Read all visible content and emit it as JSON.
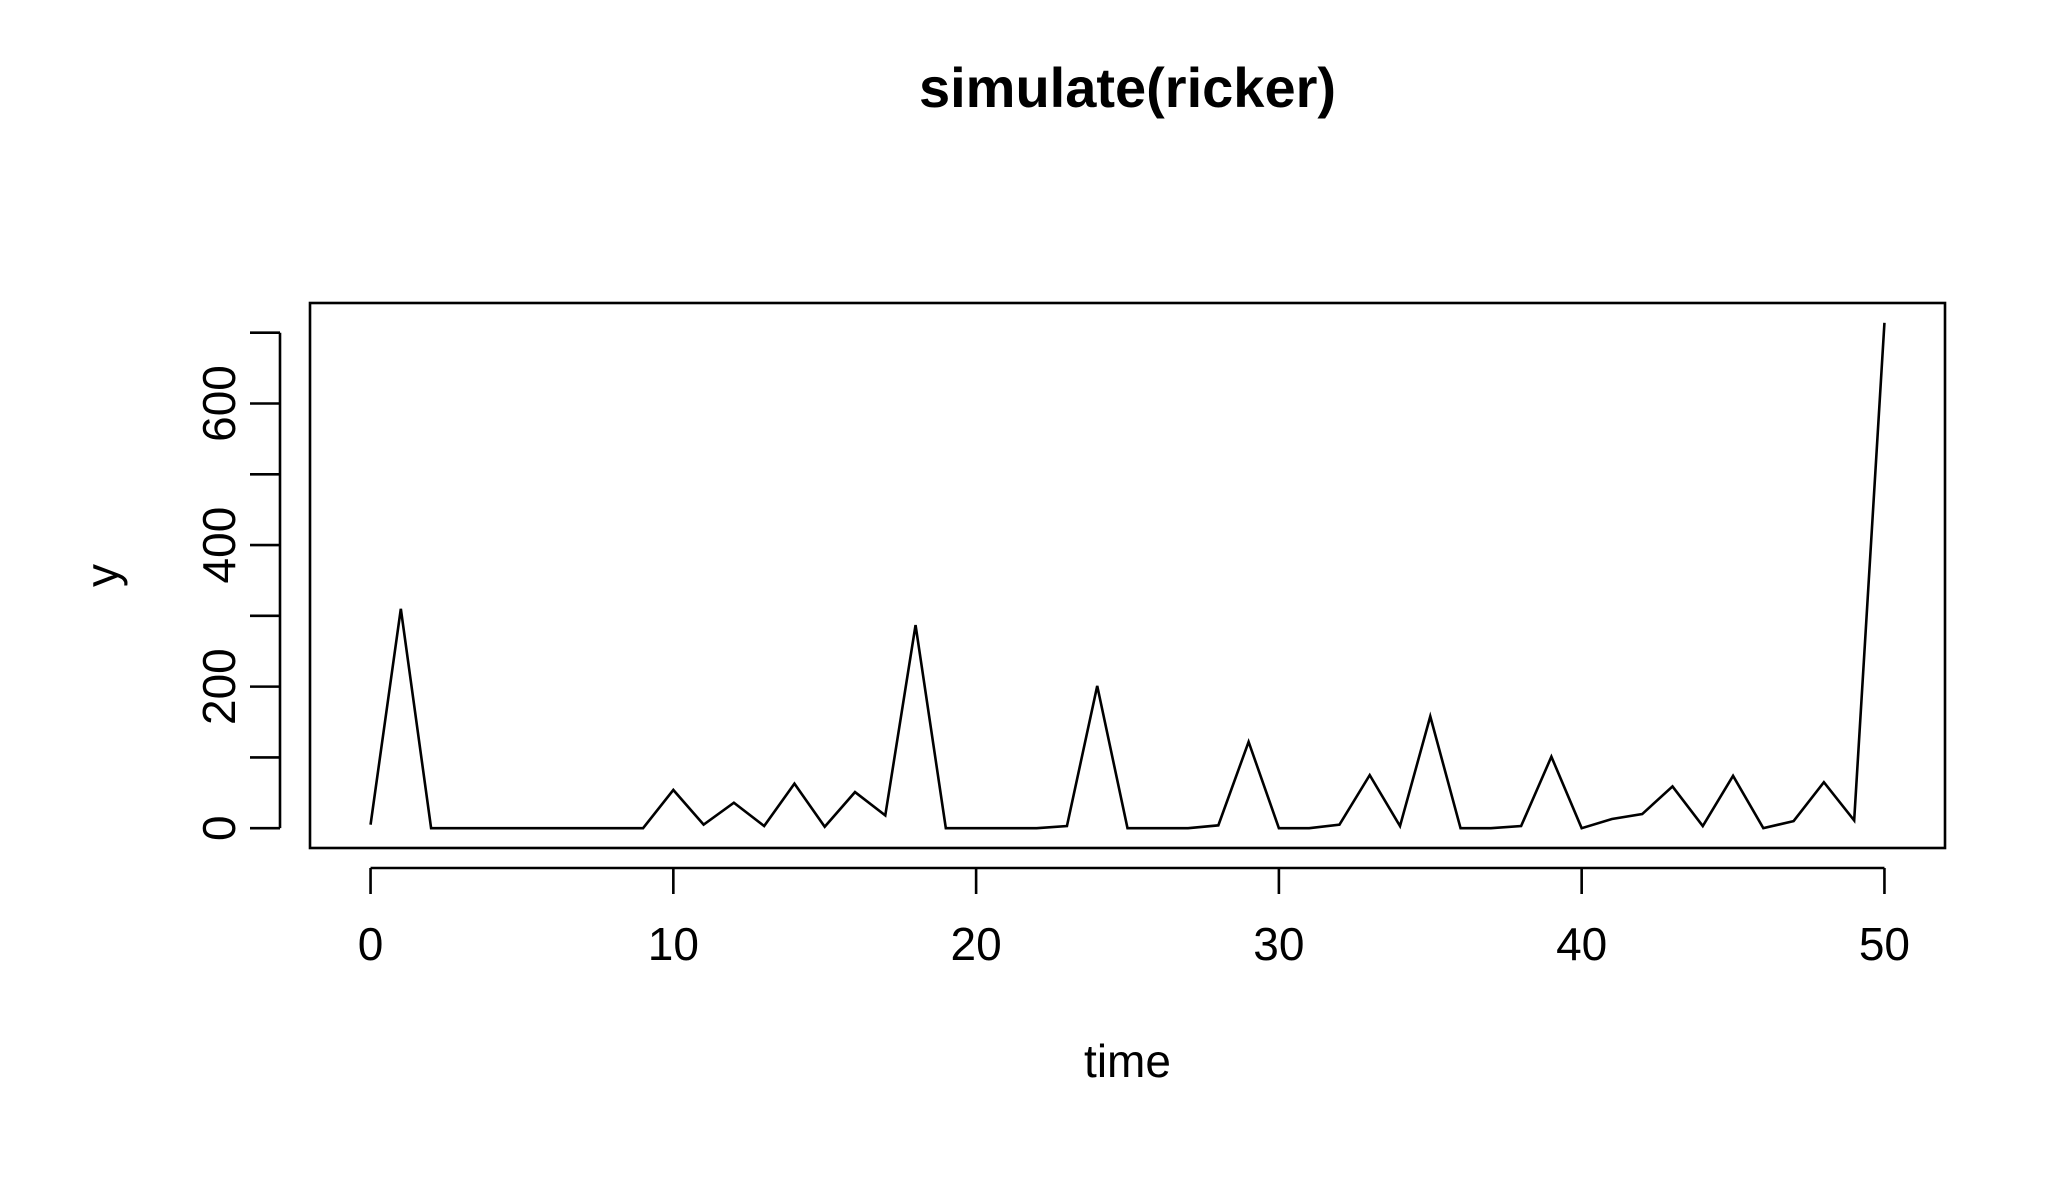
{
  "chart_data": {
    "type": "line",
    "title": "simulate(ricker)",
    "xlabel": "time",
    "ylabel": "y",
    "xlim": [
      -2,
      52
    ],
    "ylim": [
      -28,
      742
    ],
    "x_ticks": [
      0,
      10,
      20,
      30,
      40,
      50
    ],
    "y_ticks": [
      0,
      100,
      200,
      300,
      400,
      500,
      600,
      700
    ],
    "y_tick_labels": [
      "0",
      "",
      "200",
      "",
      "400",
      "",
      "600",
      ""
    ],
    "grid": false,
    "series": [
      {
        "x": [
          0,
          1,
          2,
          3,
          4,
          5,
          6,
          7,
          8,
          9,
          10,
          11,
          12,
          13,
          14,
          15,
          16,
          17,
          18,
          19,
          20,
          21,
          22,
          23,
          24,
          25,
          26,
          27,
          28,
          29,
          30,
          31,
          32,
          33,
          34,
          35,
          36,
          37,
          38,
          39,
          40,
          41,
          42,
          43,
          44,
          45,
          46,
          47,
          48,
          49,
          50
        ],
        "values": [
          5,
          310,
          0,
          0,
          0,
          0,
          0,
          0,
          0,
          0,
          54,
          5,
          36,
          3,
          63,
          2,
          51,
          18,
          287,
          0,
          0,
          0,
          0,
          3,
          201,
          0,
          0,
          0,
          4,
          122,
          0,
          0,
          5,
          75,
          3,
          158,
          0,
          0,
          3,
          101,
          0,
          13,
          20,
          59,
          3,
          74,
          0,
          10,
          65,
          11,
          714
        ]
      }
    ]
  }
}
